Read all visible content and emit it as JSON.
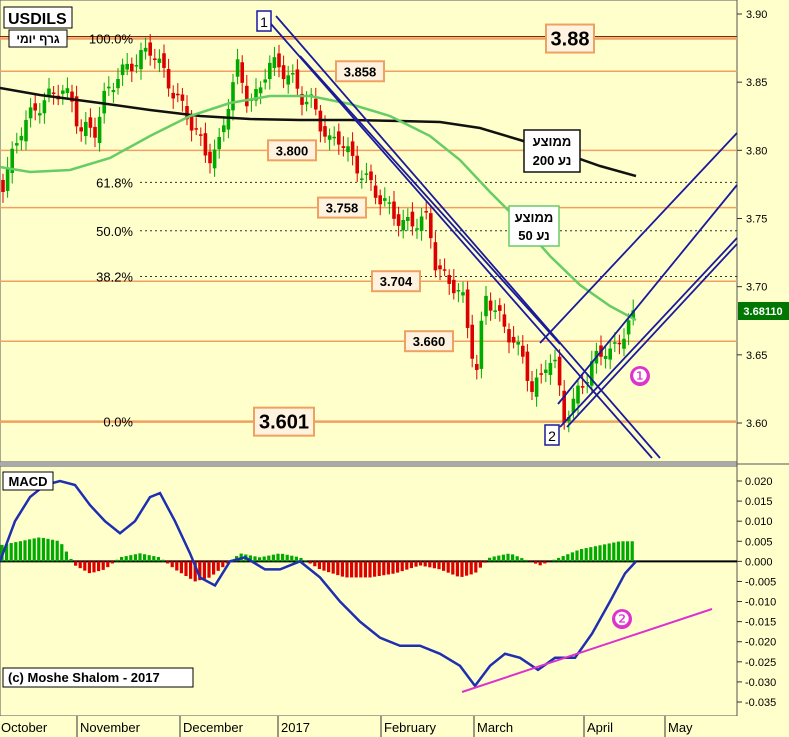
{
  "chart_data": [
    {
      "type": "candlestick",
      "title": "USDILS",
      "subtitle": "גרף יומי",
      "last_price": "3.68110",
      "y_range": [
        3.57,
        3.91
      ],
      "y_ticks": [
        "3.90",
        "3.85",
        "3.80",
        "3.75",
        "3.70",
        "3.65",
        "3.60"
      ],
      "x_ticks": [
        "October",
        "November",
        "December",
        "2017",
        "February",
        "March",
        "April",
        "May"
      ],
      "fib_levels": [
        {
          "label": "100.0%",
          "value": 3.882
        },
        {
          "label": "61.8%",
          "value": 3.7765
        },
        {
          "label": "50.0%",
          "value": 3.741
        },
        {
          "label": "38.2%",
          "value": 3.7075
        },
        {
          "label": "0.0%",
          "value": 3.601
        }
      ],
      "price_labels": [
        {
          "text": "3.88",
          "value": 3.882
        },
        {
          "text": "3.858",
          "value": 3.858
        },
        {
          "text": "3.800",
          "value": 3.8
        },
        {
          "text": "3.758",
          "value": 3.758
        },
        {
          "text": "3.704",
          "value": 3.704
        },
        {
          "text": "3.660",
          "value": 3.66
        },
        {
          "text": "3.601",
          "value": 3.601
        }
      ],
      "moving_averages": [
        {
          "label_line1": "ממוצע",
          "label_line2": "נע 200",
          "color": "#111111"
        },
        {
          "label_line1": "ממוצע",
          "label_line2": "נע 50",
          "color": "#66cc66"
        }
      ],
      "point_markers": [
        "1",
        "2"
      ],
      "circle_markers": [
        "❶"
      ]
    },
    {
      "type": "line+histogram",
      "title": "MACD",
      "y_range": [
        -0.035,
        0.022
      ],
      "y_ticks": [
        "0.020",
        "0.015",
        "0.010",
        "0.005",
        "0.000",
        "-0.005",
        "-0.010",
        "-0.015",
        "-0.020",
        "-0.025",
        "-0.030",
        "-0.035"
      ],
      "circle_markers": [
        "❷"
      ],
      "copyright": "(c) Moshe Shalom - 2017"
    }
  ],
  "colors": {
    "background": "#ffffcc",
    "up_candle": "#00aa00",
    "down_candle": "#dd0000",
    "channel": "#1a1a9c",
    "fib_line": "#f0a060",
    "label_border": "#f0a060",
    "label_fill": "#fff3e0",
    "trend_magenta": "#dd33cc",
    "macd_line": "#1f2fb0"
  }
}
